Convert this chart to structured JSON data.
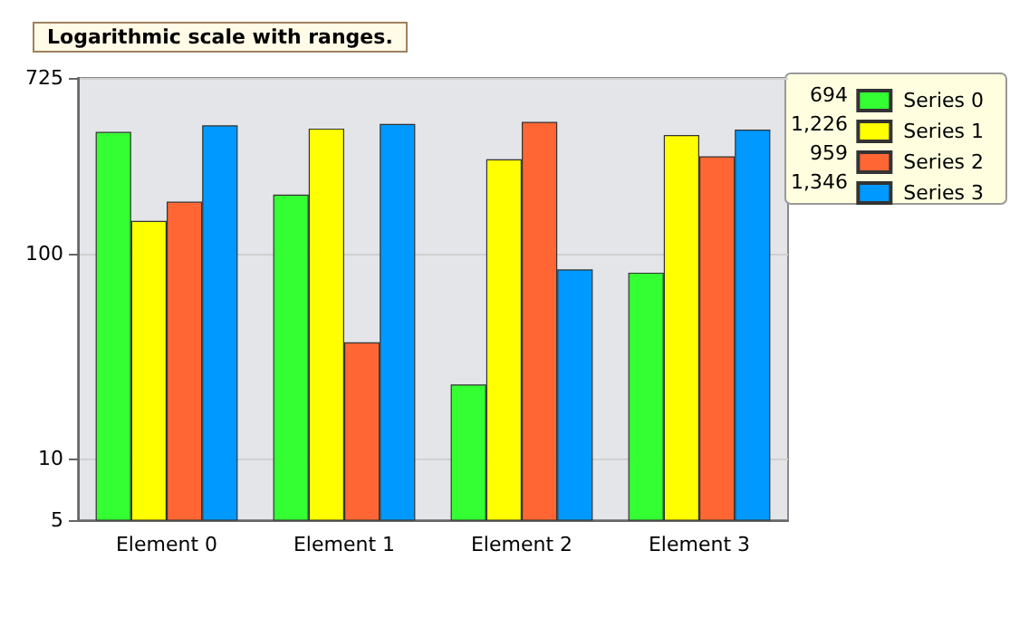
{
  "chart_data": {
    "type": "bar",
    "title": "Logarithmic scale with ranges.",
    "categories": [
      "Element 0",
      "Element 1",
      "Element 2",
      "Element 3"
    ],
    "series": [
      {
        "name": "Series 0",
        "color": "#33ff33",
        "values": [
          395,
          195,
          23,
          81
        ]
      },
      {
        "name": "Series 1",
        "color": "#ffff00",
        "values": [
          145,
          410,
          290,
          381
        ]
      },
      {
        "name": "Series 2",
        "color": "#ff6633",
        "values": [
          180,
          37,
          442,
          300
        ]
      },
      {
        "name": "Series 3",
        "color": "#0099ff",
        "values": [
          425,
          432,
          84,
          405
        ]
      }
    ],
    "annotations": [
      "694",
      "1,226",
      "959",
      "1,346"
    ],
    "log": true,
    "ylim": [
      5,
      725
    ],
    "yticks": [
      5,
      10,
      100,
      725
    ],
    "grid": "y",
    "legend": "top right"
  }
}
